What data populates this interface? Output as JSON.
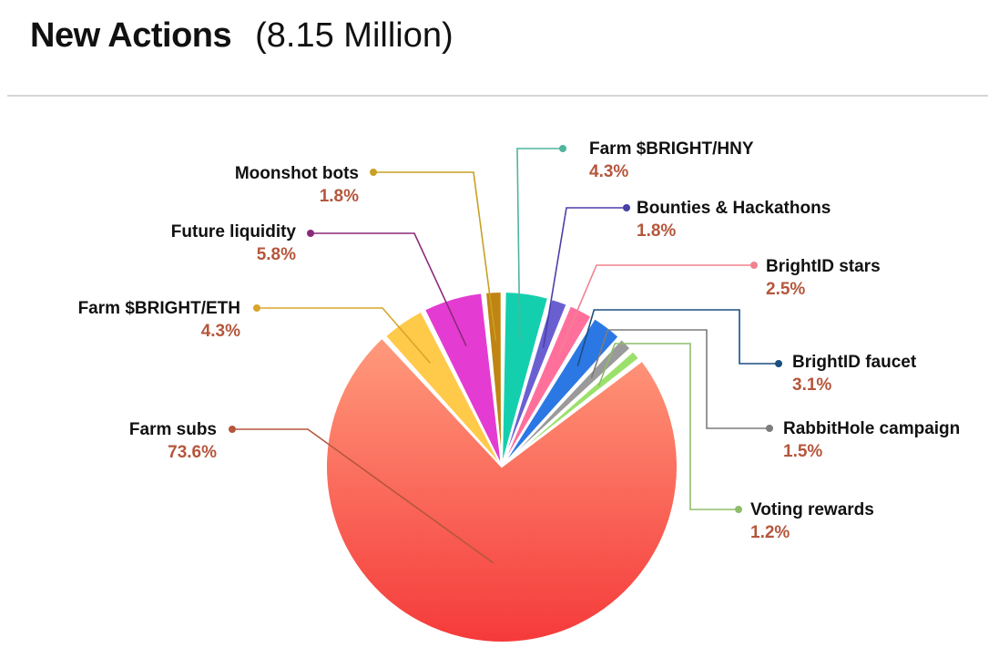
{
  "header": {
    "title": "New Actions",
    "subtitle": "(8.15 Million)"
  },
  "chart_data": {
    "type": "pie",
    "title": "New Actions",
    "subtitle": "(8.15 Million)",
    "label_color": "#b5563c",
    "slices": [
      {
        "name": "Farm $BRIGHT/HNY",
        "value": 4.3,
        "label": "4.3%",
        "color": "#14cfae",
        "line_color": "#4fb59f",
        "side": "right"
      },
      {
        "name": "Bounties & Hackathons",
        "value": 1.8,
        "label": "1.8%",
        "color": "#6a5fd1",
        "line_color": "#4a3fa8",
        "side": "right"
      },
      {
        "name": "BrightID stars",
        "value": 2.5,
        "label": "2.5%",
        "color": "#ff6f9c",
        "line_color": "#f0828f",
        "side": "right"
      },
      {
        "name": "BrightID faucet",
        "value": 3.1,
        "label": "3.1%",
        "color": "#2b78e4",
        "line_color": "#1b4f80",
        "side": "right"
      },
      {
        "name": "RabbitHole campaign",
        "value": 1.5,
        "label": "1.5%",
        "color": "#9a9a9a",
        "line_color": "#7c7c7c",
        "side": "right"
      },
      {
        "name": "Voting rewards",
        "value": 1.2,
        "label": "1.2%",
        "color": "#9be06b",
        "line_color": "#8dbd6a",
        "side": "right"
      },
      {
        "name": "Farm subs",
        "value": 73.6,
        "label": "73.6%",
        "color": "#f7594f",
        "line_color": "#b5563c",
        "side": "left"
      },
      {
        "name": "Farm $BRIGHT/ETH",
        "value": 4.3,
        "label": "4.3%",
        "color": "#ffc94a",
        "line_color": "#d8a52c",
        "side": "left"
      },
      {
        "name": "Future liquidity",
        "value": 5.8,
        "label": "5.8%",
        "color": "#e43bd2",
        "line_color": "#8a2a7a",
        "side": "left"
      },
      {
        "name": "Moonshot bots",
        "value": 1.8,
        "label": "1.8%",
        "color": "#c08412",
        "line_color": "#c8a024",
        "side": "left"
      }
    ]
  }
}
